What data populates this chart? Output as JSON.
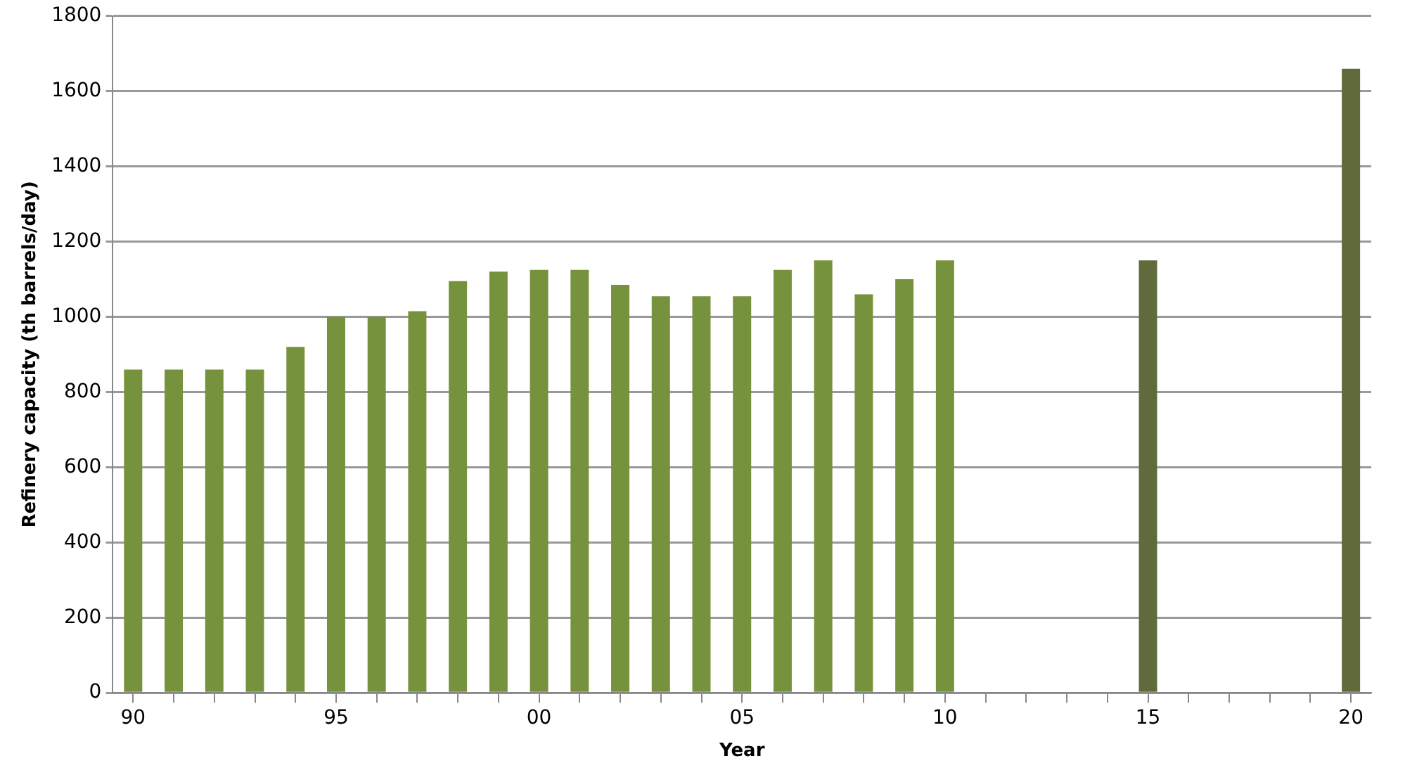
{
  "chart_data": {
    "type": "bar",
    "xlabel": "Year",
    "ylabel": "Refinery capacity (th barrels/day)",
    "categories": [
      "90",
      null,
      null,
      null,
      null,
      "95",
      null,
      null,
      null,
      null,
      "00",
      null,
      null,
      null,
      null,
      "05",
      null,
      null,
      null,
      null,
      "10",
      null,
      null,
      null,
      null,
      "15",
      null,
      null,
      null,
      null,
      "20"
    ],
    "series": [
      {
        "color": "#76923c",
        "values": [
          860,
          860,
          860,
          860,
          920,
          1000,
          1000,
          1015,
          1095,
          1120,
          1125,
          1125,
          1085,
          1055,
          1055,
          1055,
          1125,
          1150,
          1060,
          1100,
          1150,
          null,
          null,
          null,
          null,
          null,
          null,
          null,
          null,
          null,
          null
        ]
      },
      {
        "color": "#5f6b3a",
        "values": [
          null,
          null,
          null,
          null,
          null,
          null,
          null,
          null,
          null,
          null,
          null,
          null,
          null,
          null,
          null,
          null,
          null,
          null,
          null,
          null,
          null,
          null,
          null,
          null,
          null,
          1150,
          null,
          null,
          null,
          null,
          1660
        ]
      }
    ],
    "ylim": [
      0,
      1800
    ],
    "yticks": [
      0,
      200,
      400,
      600,
      800,
      1000,
      1200,
      1400,
      1600,
      1800
    ],
    "grid": "y",
    "legend": false
  }
}
